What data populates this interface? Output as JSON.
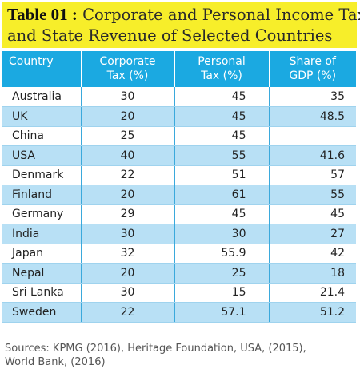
{
  "title": {
    "label": "Table 01 :",
    "line1": "Corporate and Personal Income Tax",
    "line2": "and State Revenue of Selected Countries"
  },
  "table": {
    "headers": {
      "country": "Country",
      "corporate_line1": "Corporate",
      "corporate_line2": "Tax (%)",
      "personal_line1": "Personal",
      "personal_line2": "Tax (%)",
      "gdp_line1": "Share of",
      "gdp_line2": "GDP (%)"
    },
    "rows": [
      {
        "country": "Australia",
        "corporate": "30",
        "personal": "45",
        "gdp": "35"
      },
      {
        "country": "UK",
        "corporate": "20",
        "personal": "45",
        "gdp": "48.5"
      },
      {
        "country": "China",
        "corporate": "25",
        "personal": "45",
        "gdp": ""
      },
      {
        "country": "USA",
        "corporate": "40",
        "personal": "55",
        "gdp": "41.6"
      },
      {
        "country": "Denmark",
        "corporate": "22",
        "personal": "51",
        "gdp": "57"
      },
      {
        "country": "Finland",
        "corporate": "20",
        "personal": "61",
        "gdp": "55"
      },
      {
        "country": "Germany",
        "corporate": "29",
        "personal": "45",
        "gdp": "45"
      },
      {
        "country": "India",
        "corporate": "30",
        "personal": "30",
        "gdp": "27"
      },
      {
        "country": "Japan",
        "corporate": "32",
        "personal": "55.9",
        "gdp": "42"
      },
      {
        "country": "Nepal",
        "corporate": "20",
        "personal": "25",
        "gdp": "18"
      },
      {
        "country": "Sri Lanka",
        "corporate": "30",
        "personal": "15",
        "gdp": "21.4"
      },
      {
        "country": "Sweden",
        "corporate": "22",
        "personal": "57.1",
        "gdp": "51.2"
      }
    ]
  },
  "sources": {
    "line1": "Sources: KPMG (2016), Heritage Foundation, USA, (2015),",
    "line2": "World Bank, (2016)"
  },
  "colors": {
    "title_bg": "#f7ee2a",
    "header_bg": "#1ba9e1",
    "alt_row_bg": "#b8e0f5"
  }
}
